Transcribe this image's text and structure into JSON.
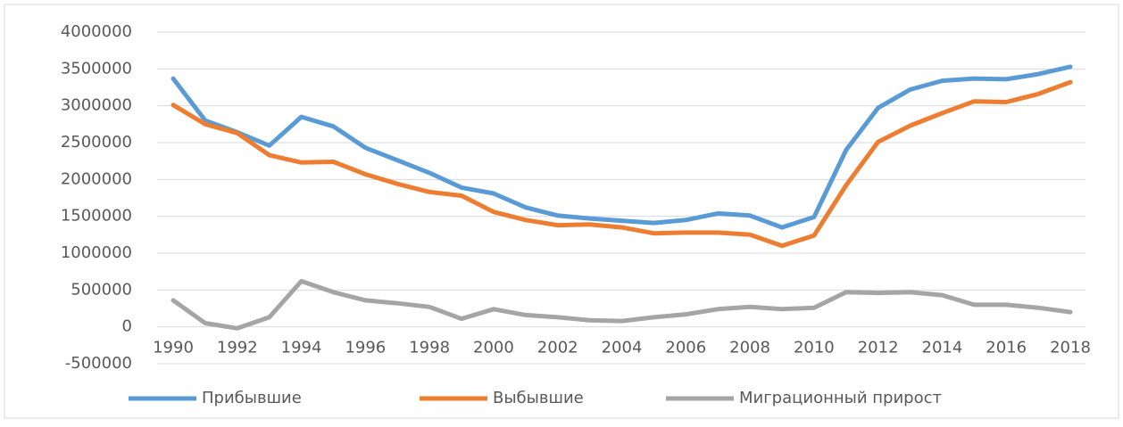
{
  "chart_data": {
    "type": "line",
    "categories": [
      "1990",
      null,
      "1992",
      null,
      "1994",
      null,
      "1996",
      null,
      "1998",
      null,
      "2000",
      null,
      "2002",
      null,
      "2004",
      null,
      "2006",
      null,
      "2008",
      null,
      "2010",
      null,
      "2012",
      null,
      "2014",
      null,
      "2016",
      null,
      "2018"
    ],
    "series": [
      {
        "name": "Прибывшие",
        "color": "#5b9bd5",
        "values": [
          3370000,
          2800000,
          2640000,
          2460000,
          2850000,
          2720000,
          2430000,
          2260000,
          2090000,
          1890000,
          1810000,
          1620000,
          1510000,
          1470000,
          1440000,
          1410000,
          1450000,
          1540000,
          1510000,
          1350000,
          1490000,
          2400000,
          2970000,
          3220000,
          3340000,
          3370000,
          3360000,
          3430000,
          3530000
        ]
      },
      {
        "name": "Выбывшие",
        "color": "#ed7d31",
        "values": [
          3010000,
          2750000,
          2630000,
          2330000,
          2230000,
          2240000,
          2070000,
          1940000,
          1830000,
          1780000,
          1560000,
          1450000,
          1380000,
          1390000,
          1350000,
          1270000,
          1280000,
          1280000,
          1250000,
          1100000,
          1240000,
          1920000,
          2510000,
          2730000,
          2900000,
          3060000,
          3050000,
          3160000,
          3320000
        ]
      },
      {
        "name": "Миграционный прирост",
        "color": "#a5a5a5",
        "values": [
          360000,
          50000,
          -20000,
          130000,
          620000,
          470000,
          360000,
          320000,
          270000,
          110000,
          240000,
          160000,
          130000,
          90000,
          80000,
          130000,
          170000,
          240000,
          270000,
          240000,
          260000,
          470000,
          460000,
          470000,
          430000,
          300000,
          300000,
          260000,
          200000
        ]
      }
    ],
    "ylim": [
      -500000,
      4000000
    ],
    "yticks": [
      -500000,
      0,
      500000,
      1000000,
      1500000,
      2000000,
      2500000,
      3000000,
      3500000,
      4000000
    ],
    "grid": true,
    "legend": "bottom"
  }
}
